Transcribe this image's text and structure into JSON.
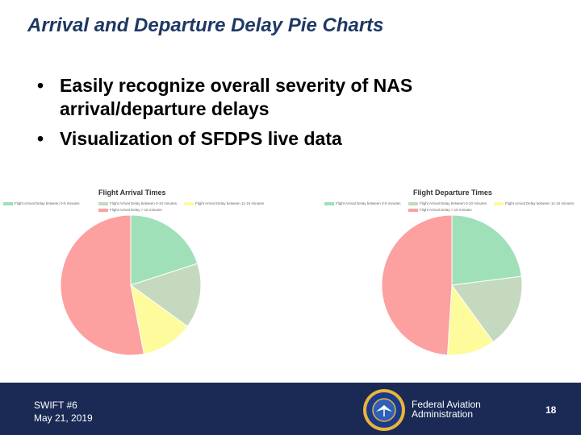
{
  "slide": {
    "title": "Arrival and Departure Delay Pie Charts",
    "bullets": [
      {
        "symbol": "•",
        "text": "Easily recognize overall severity of NAS arrival/departure delays"
      },
      {
        "symbol": "•",
        "text": "Visualization of SFDPS live data"
      }
    ]
  },
  "colors": {
    "green": "#9fe0b8",
    "sage": "#c5d9bf",
    "yellow": "#fdfb9c",
    "red": "#fca0a0",
    "footer": "#1b2a55",
    "title": "#1f3864"
  },
  "chart_data": [
    {
      "type": "pie",
      "title": "Flight Arrival Times",
      "legend": [
        "Flight Arrival Delay between 0-0 minutes",
        "Flight Arrival Delay between 0-10 minutes",
        "Flight Arrival Delay between 11-15 minutes",
        "Flight Arrival Delay > 15 minutes"
      ],
      "values": [
        20,
        15,
        12,
        53
      ],
      "colors": [
        "#9fe0b8",
        "#c5d9bf",
        "#fdfb9c",
        "#fca0a0"
      ]
    },
    {
      "type": "pie",
      "title": "Flight Departure Times",
      "legend": [
        "Flight Arrival Delay between 0-0 minutes",
        "Flight Arrival Delay between 0-10 minutes",
        "Flight Arrival Delay between 11-15 minutes",
        "Flight Arrival Delay > 15 minutes"
      ],
      "values": [
        23,
        17,
        11,
        49
      ],
      "colors": [
        "#9fe0b8",
        "#c5d9bf",
        "#fdfb9c",
        "#fca0a0"
      ]
    }
  ],
  "footer": {
    "event_name": "SWIFT #6",
    "event_date": "May 21, 2019",
    "agency_line1": "Federal Aviation",
    "agency_line2": "Administration",
    "page_number": "18",
    "logo_icon": "faa-seal-icon"
  }
}
